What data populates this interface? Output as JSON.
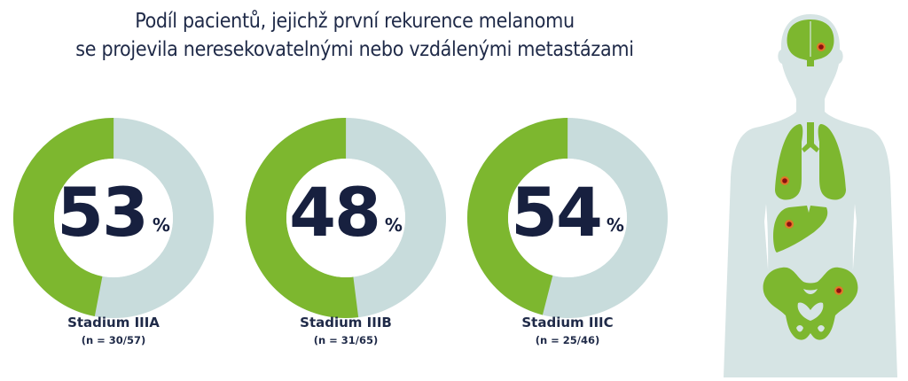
{
  "header": {
    "title_line1": "Podíl pacientů, jejichž první rekurence melanomu",
    "title_line2": "se projevila neresekovatelnými nebo vzdálenými metastázami"
  },
  "colors": {
    "green": "#7db72f",
    "ring_gray": "#c8dcdc",
    "text_dark": "#17203f",
    "body_gray": "#d6e4e4",
    "lesion_red": "#8c1010",
    "lesion_ring": "#e0762a"
  },
  "donuts": [
    {
      "value": "53",
      "pct": "%",
      "stage": "Stadium IIIA",
      "n": "(n = 30/57)"
    },
    {
      "value": "48",
      "pct": "%",
      "stage": "Stadium IIIB",
      "n": "(n = 31/65)"
    },
    {
      "value": "54",
      "pct": "%",
      "stage": "Stadium IIIC",
      "n": "(n = 25/46)"
    }
  ],
  "illustration": {
    "organs": [
      "brain",
      "lungs",
      "liver",
      "pelvis"
    ],
    "lesions": 4
  },
  "chart_data": {
    "type": "pie",
    "title": "Podíl pacientů, jejichž první rekurence melanomu se projevila neresekovatelnými nebo vzdálenými metastázami",
    "categories": [
      "Stadium IIIA",
      "Stadium IIIB",
      "Stadium IIIC"
    ],
    "values": [
      53,
      48,
      54
    ],
    "unit": "%",
    "n": [
      "30/57",
      "31/65",
      "25/46"
    ],
    "donut": true,
    "series": [
      {
        "name": "highlighted (green arc)",
        "values": [
          47,
          52,
          46
        ]
      },
      {
        "name": "remainder (gray arc)",
        "values": [
          53,
          48,
          54
        ]
      }
    ]
  }
}
